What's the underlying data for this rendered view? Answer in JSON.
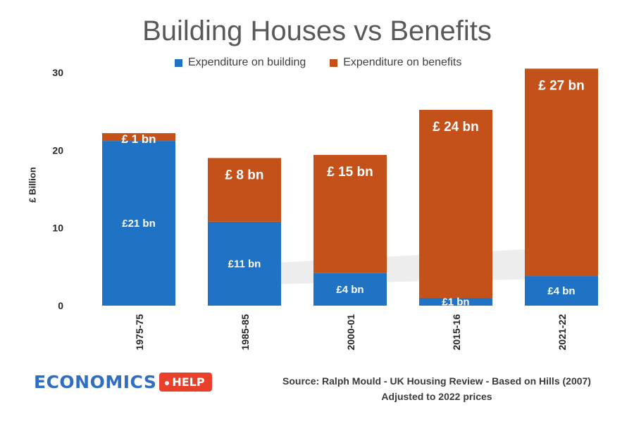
{
  "chart_data": {
    "type": "bar",
    "stacked": true,
    "title": "Building Houses vs Benefits",
    "ylabel": "£ Billion",
    "xlabel": "",
    "ylim": [
      0,
      30
    ],
    "yticks": [
      "0",
      "10",
      "20",
      "30"
    ],
    "grid": false,
    "legend_position": "top",
    "categories": [
      "1975-75",
      "1985-85",
      "2000-01",
      "2015-16",
      "2021-22"
    ],
    "series": [
      {
        "name": "Expenditure on building",
        "color": "#1f72c4",
        "values": [
          21.2,
          10.8,
          4.2,
          1.0,
          3.8
        ],
        "labels": [
          "£21 bn",
          "£11 bn",
          "£4 bn",
          "£1 bn",
          "£4 bn"
        ]
      },
      {
        "name": "Expenditure on benefits",
        "color": "#c4501a",
        "values": [
          1.0,
          8.2,
          15.2,
          24.2,
          26.7
        ],
        "labels": [
          "£ 1 bn",
          "£ 8 bn",
          "£ 15 bn",
          "£ 24 bn",
          "£ 27 bn"
        ]
      }
    ]
  },
  "source": {
    "line1": "Source: Ralph Mould - UK Housing Review - Based on Hills (2007)",
    "line2": "Adjusted to 2022 prices"
  },
  "logo": {
    "main": "ECONOMICS",
    "tag": "HELP"
  }
}
